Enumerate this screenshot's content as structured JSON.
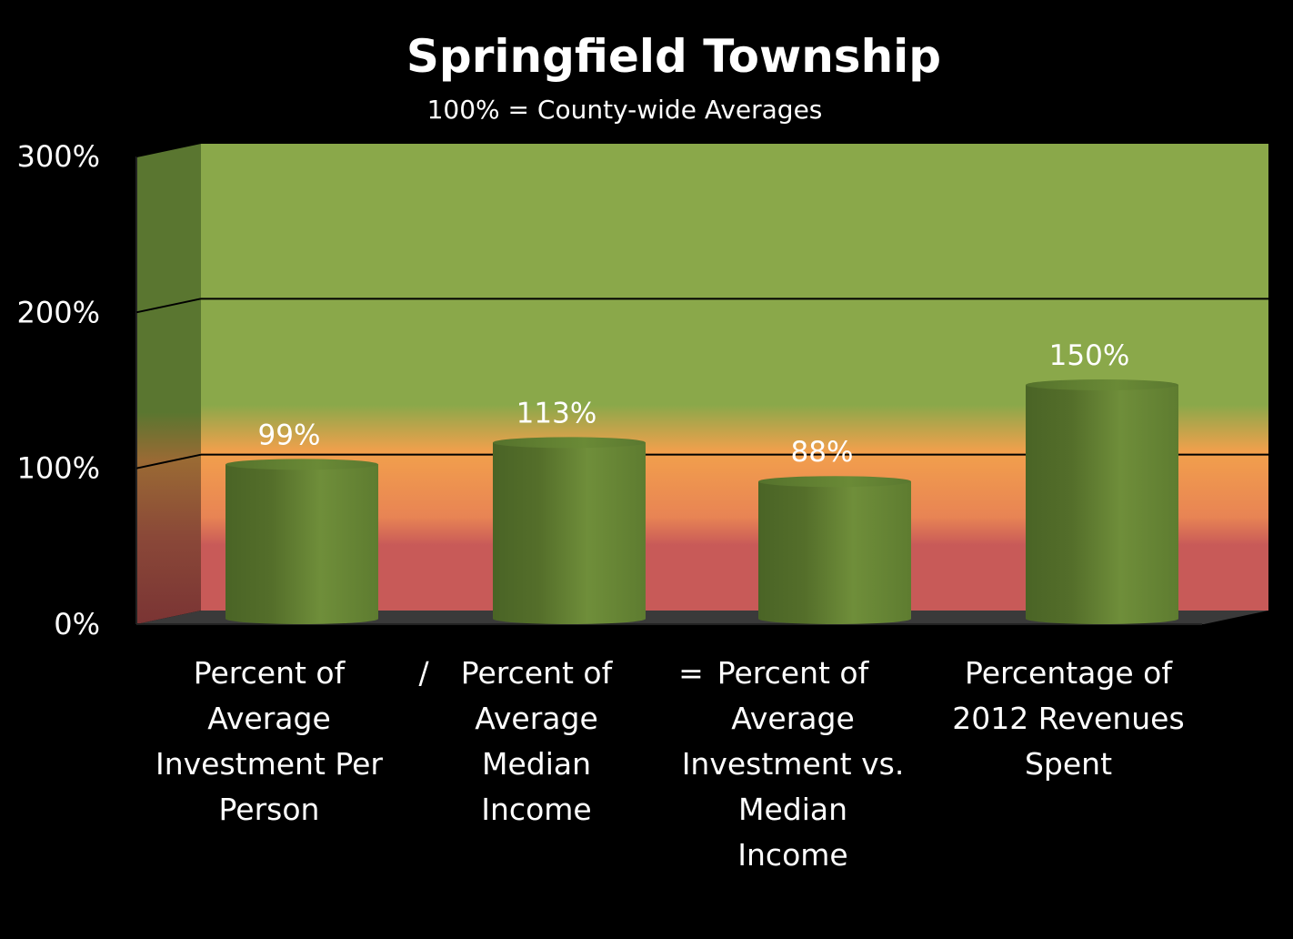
{
  "chart_data": {
    "type": "bar",
    "title": "Springfield Township",
    "subtitle": "100% = County-wide Averages",
    "categories": [
      [
        "Percent of",
        "Average",
        "Investment Per",
        "Person"
      ],
      [
        "Percent of",
        "Average",
        "Median",
        "Income"
      ],
      [
        "Percent of",
        "Average",
        "Investment vs.",
        "Median",
        "Income"
      ],
      [
        "Percentage of",
        "2012 Revenues",
        "Spent"
      ]
    ],
    "values": [
      99,
      113,
      88,
      150
    ],
    "value_labels": [
      "99%",
      "113%",
      "88%",
      "150%"
    ],
    "operators": [
      "/",
      "="
    ],
    "ylim": [
      0,
      300
    ],
    "yticks": [
      0,
      100,
      200,
      300
    ],
    "ytick_labels": [
      "0%",
      "100%",
      "200%",
      "300%"
    ],
    "grid": true,
    "bar_color": "#5e7a2e",
    "background_bands": {
      "top": "#8aa84a",
      "middle": "#f59a4e",
      "bottom": "#c85a58"
    }
  }
}
